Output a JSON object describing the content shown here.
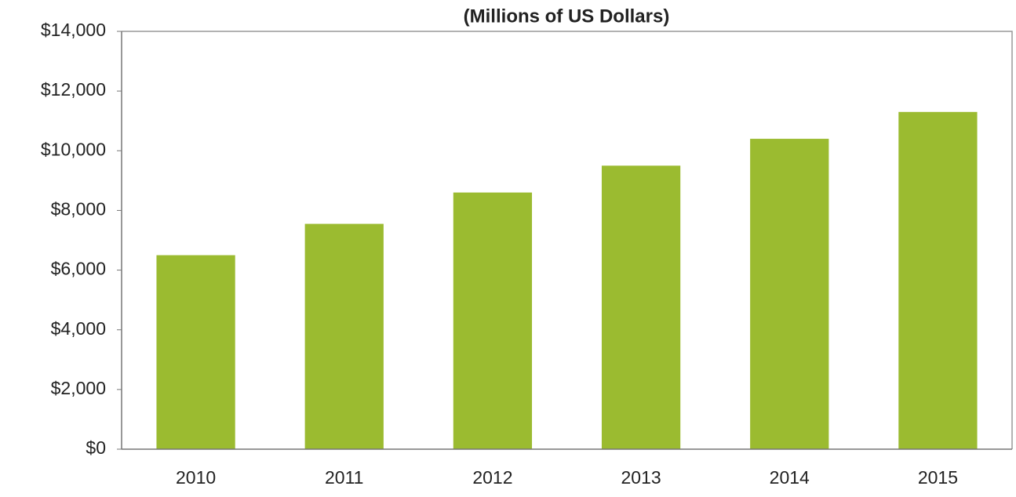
{
  "chart_data": {
    "type": "bar",
    "title": "(Millions of US Dollars)",
    "categories": [
      "2010",
      "2011",
      "2012",
      "2013",
      "2014",
      "2015"
    ],
    "values": [
      6500,
      7550,
      8600,
      9500,
      10400,
      11300
    ],
    "color": "#9bbb30",
    "ylim": [
      0,
      14000
    ],
    "yticks": [
      {
        "value": 0,
        "label": "$0"
      },
      {
        "value": 2000,
        "label": "$2,000"
      },
      {
        "value": 4000,
        "label": "$4,000"
      },
      {
        "value": 6000,
        "label": "$6,000"
      },
      {
        "value": 8000,
        "label": "$8,000"
      },
      {
        "value": 10000,
        "label": "$10,000"
      },
      {
        "value": 12000,
        "label": "$12,000"
      },
      {
        "value": 14000,
        "label": "$14,000"
      }
    ],
    "grid": false
  }
}
